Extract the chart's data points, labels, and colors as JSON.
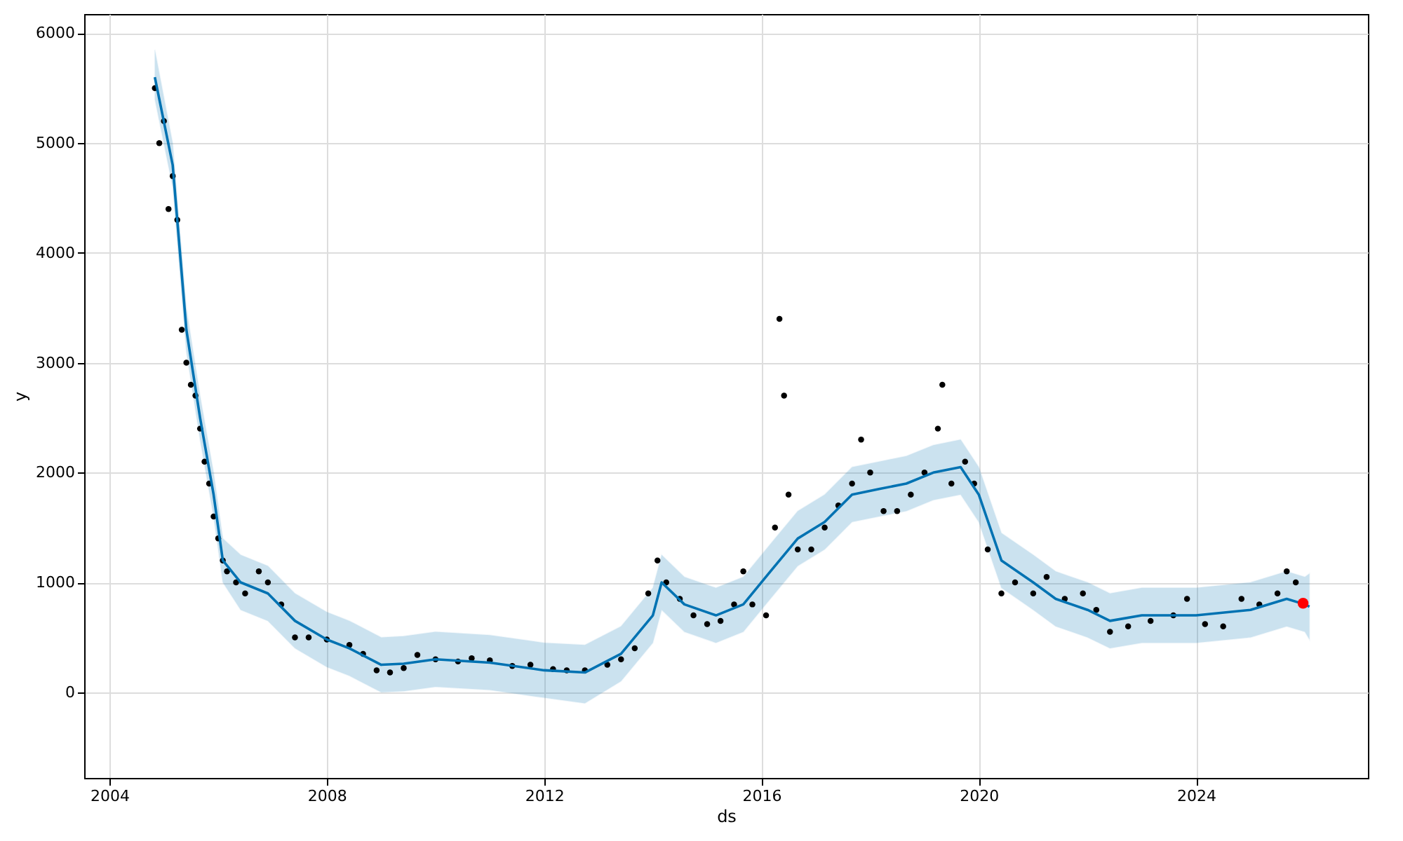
{
  "chart_data": {
    "type": "scatter",
    "xlabel": "ds",
    "ylabel": "y",
    "xlim": [
      "2003-07-15",
      "2027-03-01"
    ],
    "ylim": [
      -780,
      6175
    ],
    "xticks": [
      "2004",
      "2008",
      "2012",
      "2016",
      "2020",
      "2024"
    ],
    "yticks": [
      0,
      1000,
      2000,
      3000,
      4000,
      5000,
      6000
    ],
    "grid": true,
    "series": [
      {
        "type": "line",
        "marker": "none",
        "color": "#0072b2",
        "x": [
          "2004-11",
          "2005-03",
          "2005-06",
          "2005-09",
          "2005-12",
          "2006-02",
          "2006-06",
          "2006-12",
          "2007-06",
          "2008-01",
          "2008-06",
          "2009-01",
          "2009-06",
          "2010-01",
          "2011-01",
          "2012-01",
          "2012-10",
          "2013-06",
          "2014-01",
          "2014-03",
          "2014-08",
          "2015-03",
          "2015-09",
          "2016-03",
          "2016-09",
          "2017-03",
          "2017-09",
          "2018-03",
          "2018-09",
          "2019-03",
          "2019-09",
          "2020-01",
          "2020-06",
          "2021-01",
          "2021-06",
          "2022-01",
          "2022-06",
          "2023-01",
          "2024-01",
          "2025-01",
          "2025-09",
          "2026-01",
          "2026-02"
        ],
        "values": [
          5600,
          4800,
          3300,
          2500,
          1800,
          1200,
          1000,
          900,
          650,
          480,
          400,
          250,
          260,
          300,
          270,
          200,
          180,
          350,
          700,
          1000,
          800,
          700,
          800,
          1100,
          1400,
          1550,
          1800,
          1850,
          1900,
          2000,
          2050,
          1800,
          1200,
          1000,
          850,
          750,
          650,
          700,
          700,
          750,
          850,
          800,
          780
        ],
        "lower": [
          5400,
          4600,
          3100,
          2300,
          1600,
          1000,
          750,
          650,
          400,
          230,
          150,
          0,
          10,
          50,
          20,
          -50,
          -100,
          100,
          450,
          750,
          550,
          450,
          550,
          850,
          1150,
          1300,
          1550,
          1600,
          1650,
          1750,
          1800,
          1550,
          950,
          750,
          600,
          500,
          400,
          450,
          450,
          500,
          600,
          550,
          480
        ],
        "upper": [
          5850,
          5000,
          3500,
          2700,
          2000,
          1400,
          1250,
          1150,
          900,
          730,
          650,
          500,
          510,
          550,
          520,
          450,
          430,
          600,
          950,
          1250,
          1050,
          950,
          1050,
          1350,
          1650,
          1800,
          2050,
          2100,
          2150,
          2250,
          2300,
          2050,
          1450,
          1250,
          1100,
          1000,
          900,
          950,
          950,
          1000,
          1100,
          1050,
          1080
        ]
      },
      {
        "marker": "circle",
        "color": "#000000",
        "x": [
          "2004-11",
          "2004-12",
          "2005-01",
          "2005-02",
          "2005-03",
          "2005-04",
          "2005-05",
          "2005-06",
          "2005-07",
          "2005-08",
          "2005-09",
          "2005-10",
          "2005-11",
          "2005-12",
          "2006-01",
          "2006-02",
          "2006-03",
          "2006-05",
          "2006-07",
          "2006-10",
          "2006-12",
          "2007-03",
          "2007-06",
          "2007-09",
          "2008-01",
          "2008-06",
          "2008-09",
          "2008-12",
          "2009-03",
          "2009-06",
          "2009-09",
          "2010-01",
          "2010-06",
          "2010-09",
          "2011-01",
          "2011-06",
          "2011-10",
          "2012-03",
          "2012-06",
          "2012-10",
          "2013-03",
          "2013-06",
          "2013-09",
          "2013-12",
          "2014-02",
          "2014-04",
          "2014-07",
          "2014-10",
          "2015-01",
          "2015-04",
          "2015-07",
          "2015-09",
          "2015-11",
          "2016-02",
          "2016-04",
          "2016-05",
          "2016-06",
          "2016-07",
          "2016-09",
          "2016-12",
          "2017-03",
          "2017-06",
          "2017-09",
          "2017-11",
          "2018-01",
          "2018-04",
          "2018-07",
          "2018-10",
          "2019-01",
          "2019-04",
          "2019-05",
          "2019-07",
          "2019-10",
          "2019-12",
          "2020-03",
          "2020-06",
          "2020-09",
          "2021-01",
          "2021-04",
          "2021-08",
          "2021-12",
          "2022-03",
          "2022-06",
          "2022-10",
          "2023-03",
          "2023-08",
          "2023-11",
          "2024-03",
          "2024-07",
          "2024-11",
          "2025-03",
          "2025-07",
          "2025-09",
          "2025-11"
        ],
        "values": [
          5500,
          5000,
          5200,
          4400,
          4700,
          4300,
          3300,
          3000,
          2800,
          2700,
          2400,
          2100,
          1900,
          1600,
          1400,
          1200,
          1100,
          1000,
          900,
          1100,
          1000,
          800,
          500,
          500,
          480,
          430,
          350,
          200,
          180,
          220,
          340,
          300,
          280,
          310,
          290,
          240,
          250,
          210,
          200,
          200,
          250,
          300,
          400,
          900,
          1200,
          1000,
          850,
          700,
          620,
          650,
          800,
          1100,
          800,
          700,
          1500,
          3400,
          2700,
          1800,
          1300,
          1300,
          1500,
          1700,
          1900,
          2300,
          2000,
          1650,
          1650,
          1800,
          2000,
          2400,
          2800,
          1900,
          2100,
          1900,
          1300,
          900,
          1000,
          900,
          1050,
          850,
          900,
          750,
          550,
          600,
          650,
          700,
          850,
          620,
          600,
          850,
          800,
          900,
          1100,
          1000
        ]
      },
      {
        "type": "scatter",
        "marker": "circle",
        "color": "#ff0000",
        "x": [
          "2025-12-20"
        ],
        "values": [
          810
        ]
      }
    ]
  }
}
